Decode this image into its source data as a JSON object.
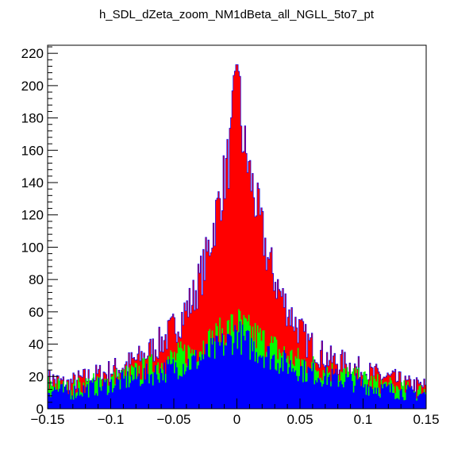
{
  "chart_data": {
    "type": "bar",
    "title": "h_SDL_dZeta_zoom_NM1dBeta_all_NGLL_5to7_pt",
    "xlabel": "",
    "ylabel": "",
    "xlim": [
      -0.15,
      0.15
    ],
    "ylim": [
      0,
      225
    ],
    "grid": false,
    "legend": "none",
    "xticks": [
      -0.15,
      -0.1,
      -0.05,
      0,
      0.05,
      0.1,
      0.15
    ],
    "xtick_labels": [
      "−0.15",
      "−0.1",
      "−0.05",
      "0",
      "0.05",
      "0.1",
      "0.15"
    ],
    "yticks": [
      0,
      20,
      40,
      60,
      80,
      100,
      120,
      140,
      160,
      180,
      200,
      220
    ],
    "ytick_labels": [
      "0",
      "20",
      "40",
      "60",
      "80",
      "100",
      "120",
      "140",
      "160",
      "180",
      "200",
      "220"
    ],
    "bin_centers": [
      -0.145,
      -0.135,
      -0.125,
      -0.115,
      -0.105,
      -0.095,
      -0.085,
      -0.075,
      -0.065,
      -0.055,
      -0.045,
      -0.035,
      -0.025,
      -0.015,
      -0.005,
      0.0,
      0.005,
      0.015,
      0.025,
      0.035,
      0.045,
      0.055,
      0.065,
      0.075,
      0.085,
      0.095,
      0.105,
      0.115,
      0.125,
      0.135,
      0.145
    ],
    "series": [
      {
        "color": "#ff0000",
        "outline": "#0000ff",
        "values": [
          18,
          15,
          18,
          20,
          22,
          25,
          28,
          32,
          38,
          45,
          55,
          68,
          90,
          125,
          160,
          213,
          165,
          128,
          92,
          70,
          55,
          42,
          35,
          30,
          28,
          25,
          22,
          20,
          18,
          15,
          14
        ]
      },
      {
        "color": "#00ff00",
        "values": [
          15,
          12,
          14,
          16,
          17,
          19,
          21,
          24,
          27,
          30,
          33,
          36,
          40,
          45,
          50,
          54,
          50,
          45,
          40,
          35,
          31,
          28,
          25,
          23,
          21,
          19,
          17,
          15,
          13,
          12,
          11
        ]
      },
      {
        "color": "#0000ff",
        "values": [
          12,
          10,
          11,
          13,
          14,
          16,
          18,
          20,
          22,
          24,
          27,
          29,
          33,
          37,
          42,
          48,
          42,
          37,
          33,
          29,
          26,
          23,
          21,
          19,
          18,
          16,
          14,
          12,
          11,
          10,
          9
        ]
      }
    ]
  }
}
